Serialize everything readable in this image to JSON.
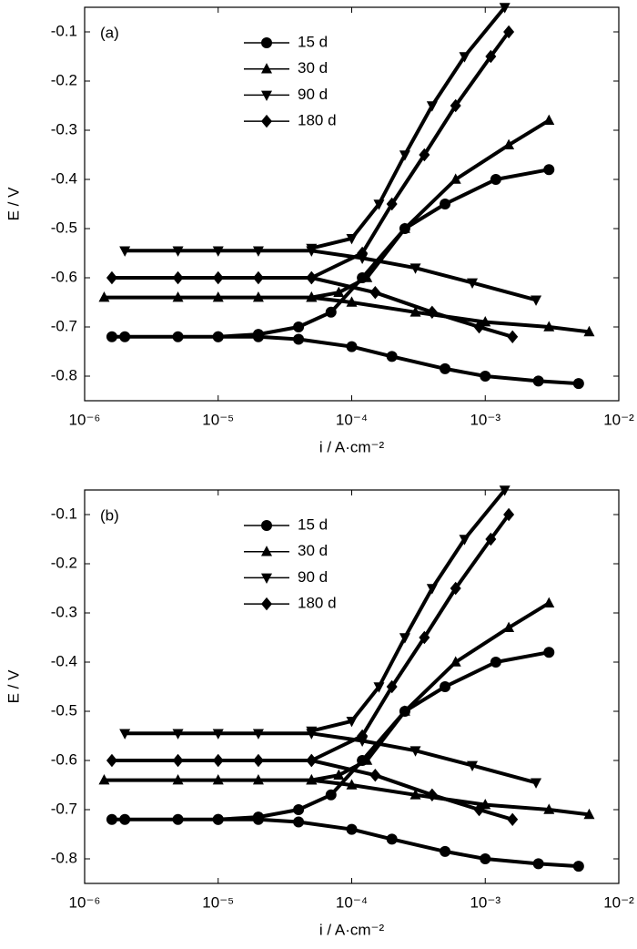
{
  "chart_data": [
    {
      "type": "line",
      "annotation": "(a)",
      "xlabel": "i / A·cm⁻²",
      "ylabel": "E / V",
      "xscale": "log",
      "xlim": [
        1e-06,
        0.01
      ],
      "ylim": [
        -0.85,
        -0.05
      ],
      "xticks": [
        {
          "value": 1e-06,
          "label": "10⁻⁶"
        },
        {
          "value": 1e-05,
          "label": "10⁻⁵"
        },
        {
          "value": 0.0001,
          "label": "10⁻⁴"
        },
        {
          "value": 0.001,
          "label": "10⁻³"
        },
        {
          "value": 0.01,
          "label": "10⁻²"
        }
      ],
      "yticks": [
        -0.8,
        -0.7,
        -0.6,
        -0.5,
        -0.4,
        -0.3,
        -0.2,
        -0.1
      ],
      "legend": "top-center",
      "series": [
        {
          "name": "15 d",
          "color": "#000000",
          "marker": "circle",
          "x": [
            1.6e-06,
            2e-06,
            5e-06,
            1e-05,
            2e-05,
            4e-05,
            0.0001,
            0.0002,
            0.0005,
            0.001,
            0.0025,
            0.005,
            null,
            1e-05,
            2e-05,
            4e-05,
            7e-05,
            0.00012,
            0.00025,
            0.0005,
            0.0012,
            0.003
          ],
          "values": [
            -0.72,
            -0.72,
            -0.72,
            -0.72,
            -0.72,
            -0.725,
            -0.74,
            -0.76,
            -0.785,
            -0.8,
            -0.81,
            -0.815,
            null,
            -0.72,
            -0.715,
            -0.7,
            -0.67,
            -0.6,
            -0.5,
            -0.45,
            -0.4,
            -0.38
          ]
        },
        {
          "name": "30 d",
          "color": "#000000",
          "marker": "triangle-up",
          "x": [
            1.4e-06,
            5e-06,
            1e-05,
            2e-05,
            5e-05,
            0.0001,
            0.0003,
            0.001,
            0.003,
            0.006,
            null,
            5e-05,
            8e-05,
            0.00013,
            0.00025,
            0.0006,
            0.0015,
            0.003
          ],
          "values": [
            -0.64,
            -0.64,
            -0.64,
            -0.64,
            -0.64,
            -0.65,
            -0.67,
            -0.69,
            -0.7,
            -0.71,
            null,
            -0.64,
            -0.63,
            -0.6,
            -0.5,
            -0.4,
            -0.33,
            -0.28
          ]
        },
        {
          "name": "90 d",
          "color": "#000000",
          "marker": "triangle-down",
          "x": [
            2e-06,
            5e-06,
            1e-05,
            2e-05,
            5e-05,
            0.00012,
            0.0003,
            0.0008,
            0.0024,
            null,
            5e-05,
            0.0001,
            0.00016,
            0.00025,
            0.0004,
            0.0007,
            0.0014
          ],
          "values": [
            -0.545,
            -0.545,
            -0.545,
            -0.545,
            -0.545,
            -0.56,
            -0.58,
            -0.61,
            -0.645,
            null,
            -0.54,
            -0.52,
            -0.45,
            -0.35,
            -0.25,
            -0.15,
            -0.05
          ]
        },
        {
          "name": "180 d",
          "color": "#000000",
          "marker": "diamond",
          "x": [
            1.6e-06,
            5e-06,
            1e-05,
            2e-05,
            5e-05,
            0.00015,
            0.0004,
            0.0009,
            0.0016,
            null,
            5e-05,
            0.00012,
            0.0002,
            0.00035,
            0.0006,
            0.0011,
            0.0015
          ],
          "values": [
            -0.6,
            -0.6,
            -0.6,
            -0.6,
            -0.6,
            -0.63,
            -0.67,
            -0.7,
            -0.72,
            null,
            -0.6,
            -0.55,
            -0.45,
            -0.35,
            -0.25,
            -0.15,
            -0.1
          ]
        }
      ]
    },
    {
      "type": "line",
      "annotation": "(b)",
      "xlabel": "i / A·cm⁻²",
      "ylabel": "E / V",
      "xscale": "log",
      "xlim": [
        1e-06,
        0.01
      ],
      "ylim": [
        -0.85,
        -0.05
      ],
      "xticks": [
        {
          "value": 1e-06,
          "label": "10⁻⁶"
        },
        {
          "value": 1e-05,
          "label": "10⁻⁵"
        },
        {
          "value": 0.0001,
          "label": "10⁻⁴"
        },
        {
          "value": 0.001,
          "label": "10⁻³"
        },
        {
          "value": 0.01,
          "label": "10⁻²"
        }
      ],
      "yticks": [
        -0.8,
        -0.7,
        -0.6,
        -0.5,
        -0.4,
        -0.3,
        -0.2,
        -0.1
      ],
      "legend": "top-center",
      "series": [
        {
          "name": "15 d",
          "color": "#000000",
          "marker": "circle",
          "x": [
            1.6e-06,
            2e-06,
            5e-06,
            1e-05,
            2e-05,
            4e-05,
            0.0001,
            0.0002,
            0.0005,
            0.001,
            0.0025,
            0.005,
            null,
            1e-05,
            2e-05,
            4e-05,
            7e-05,
            0.00012,
            0.00025,
            0.0005,
            0.0012,
            0.003
          ],
          "values": [
            -0.72,
            -0.72,
            -0.72,
            -0.72,
            -0.72,
            -0.725,
            -0.74,
            -0.76,
            -0.785,
            -0.8,
            -0.81,
            -0.815,
            null,
            -0.72,
            -0.715,
            -0.7,
            -0.67,
            -0.6,
            -0.5,
            -0.45,
            -0.4,
            -0.38
          ]
        },
        {
          "name": "30 d",
          "color": "#000000",
          "marker": "triangle-up",
          "x": [
            1.4e-06,
            5e-06,
            1e-05,
            2e-05,
            5e-05,
            0.0001,
            0.0003,
            0.001,
            0.003,
            0.006,
            null,
            5e-05,
            8e-05,
            0.00013,
            0.00025,
            0.0006,
            0.0015,
            0.003
          ],
          "values": [
            -0.64,
            -0.64,
            -0.64,
            -0.64,
            -0.64,
            -0.65,
            -0.67,
            -0.69,
            -0.7,
            -0.71,
            null,
            -0.64,
            -0.63,
            -0.6,
            -0.5,
            -0.4,
            -0.33,
            -0.28
          ]
        },
        {
          "name": "90 d",
          "color": "#000000",
          "marker": "triangle-down",
          "x": [
            2e-06,
            5e-06,
            1e-05,
            2e-05,
            5e-05,
            0.00012,
            0.0003,
            0.0008,
            0.0024,
            null,
            5e-05,
            0.0001,
            0.00016,
            0.00025,
            0.0004,
            0.0007,
            0.0014
          ],
          "values": [
            -0.545,
            -0.545,
            -0.545,
            -0.545,
            -0.545,
            -0.56,
            -0.58,
            -0.61,
            -0.645,
            null,
            -0.54,
            -0.52,
            -0.45,
            -0.35,
            -0.25,
            -0.15,
            -0.05
          ]
        },
        {
          "name": "180 d",
          "color": "#000000",
          "marker": "diamond",
          "x": [
            1.6e-06,
            5e-06,
            1e-05,
            2e-05,
            5e-05,
            0.00015,
            0.0004,
            0.0009,
            0.0016,
            null,
            5e-05,
            0.00012,
            0.0002,
            0.00035,
            0.0006,
            0.0011,
            0.0015
          ],
          "values": [
            -0.6,
            -0.6,
            -0.6,
            -0.6,
            -0.6,
            -0.63,
            -0.67,
            -0.7,
            -0.72,
            null,
            -0.6,
            -0.55,
            -0.45,
            -0.35,
            -0.25,
            -0.15,
            -0.1
          ]
        }
      ]
    }
  ]
}
